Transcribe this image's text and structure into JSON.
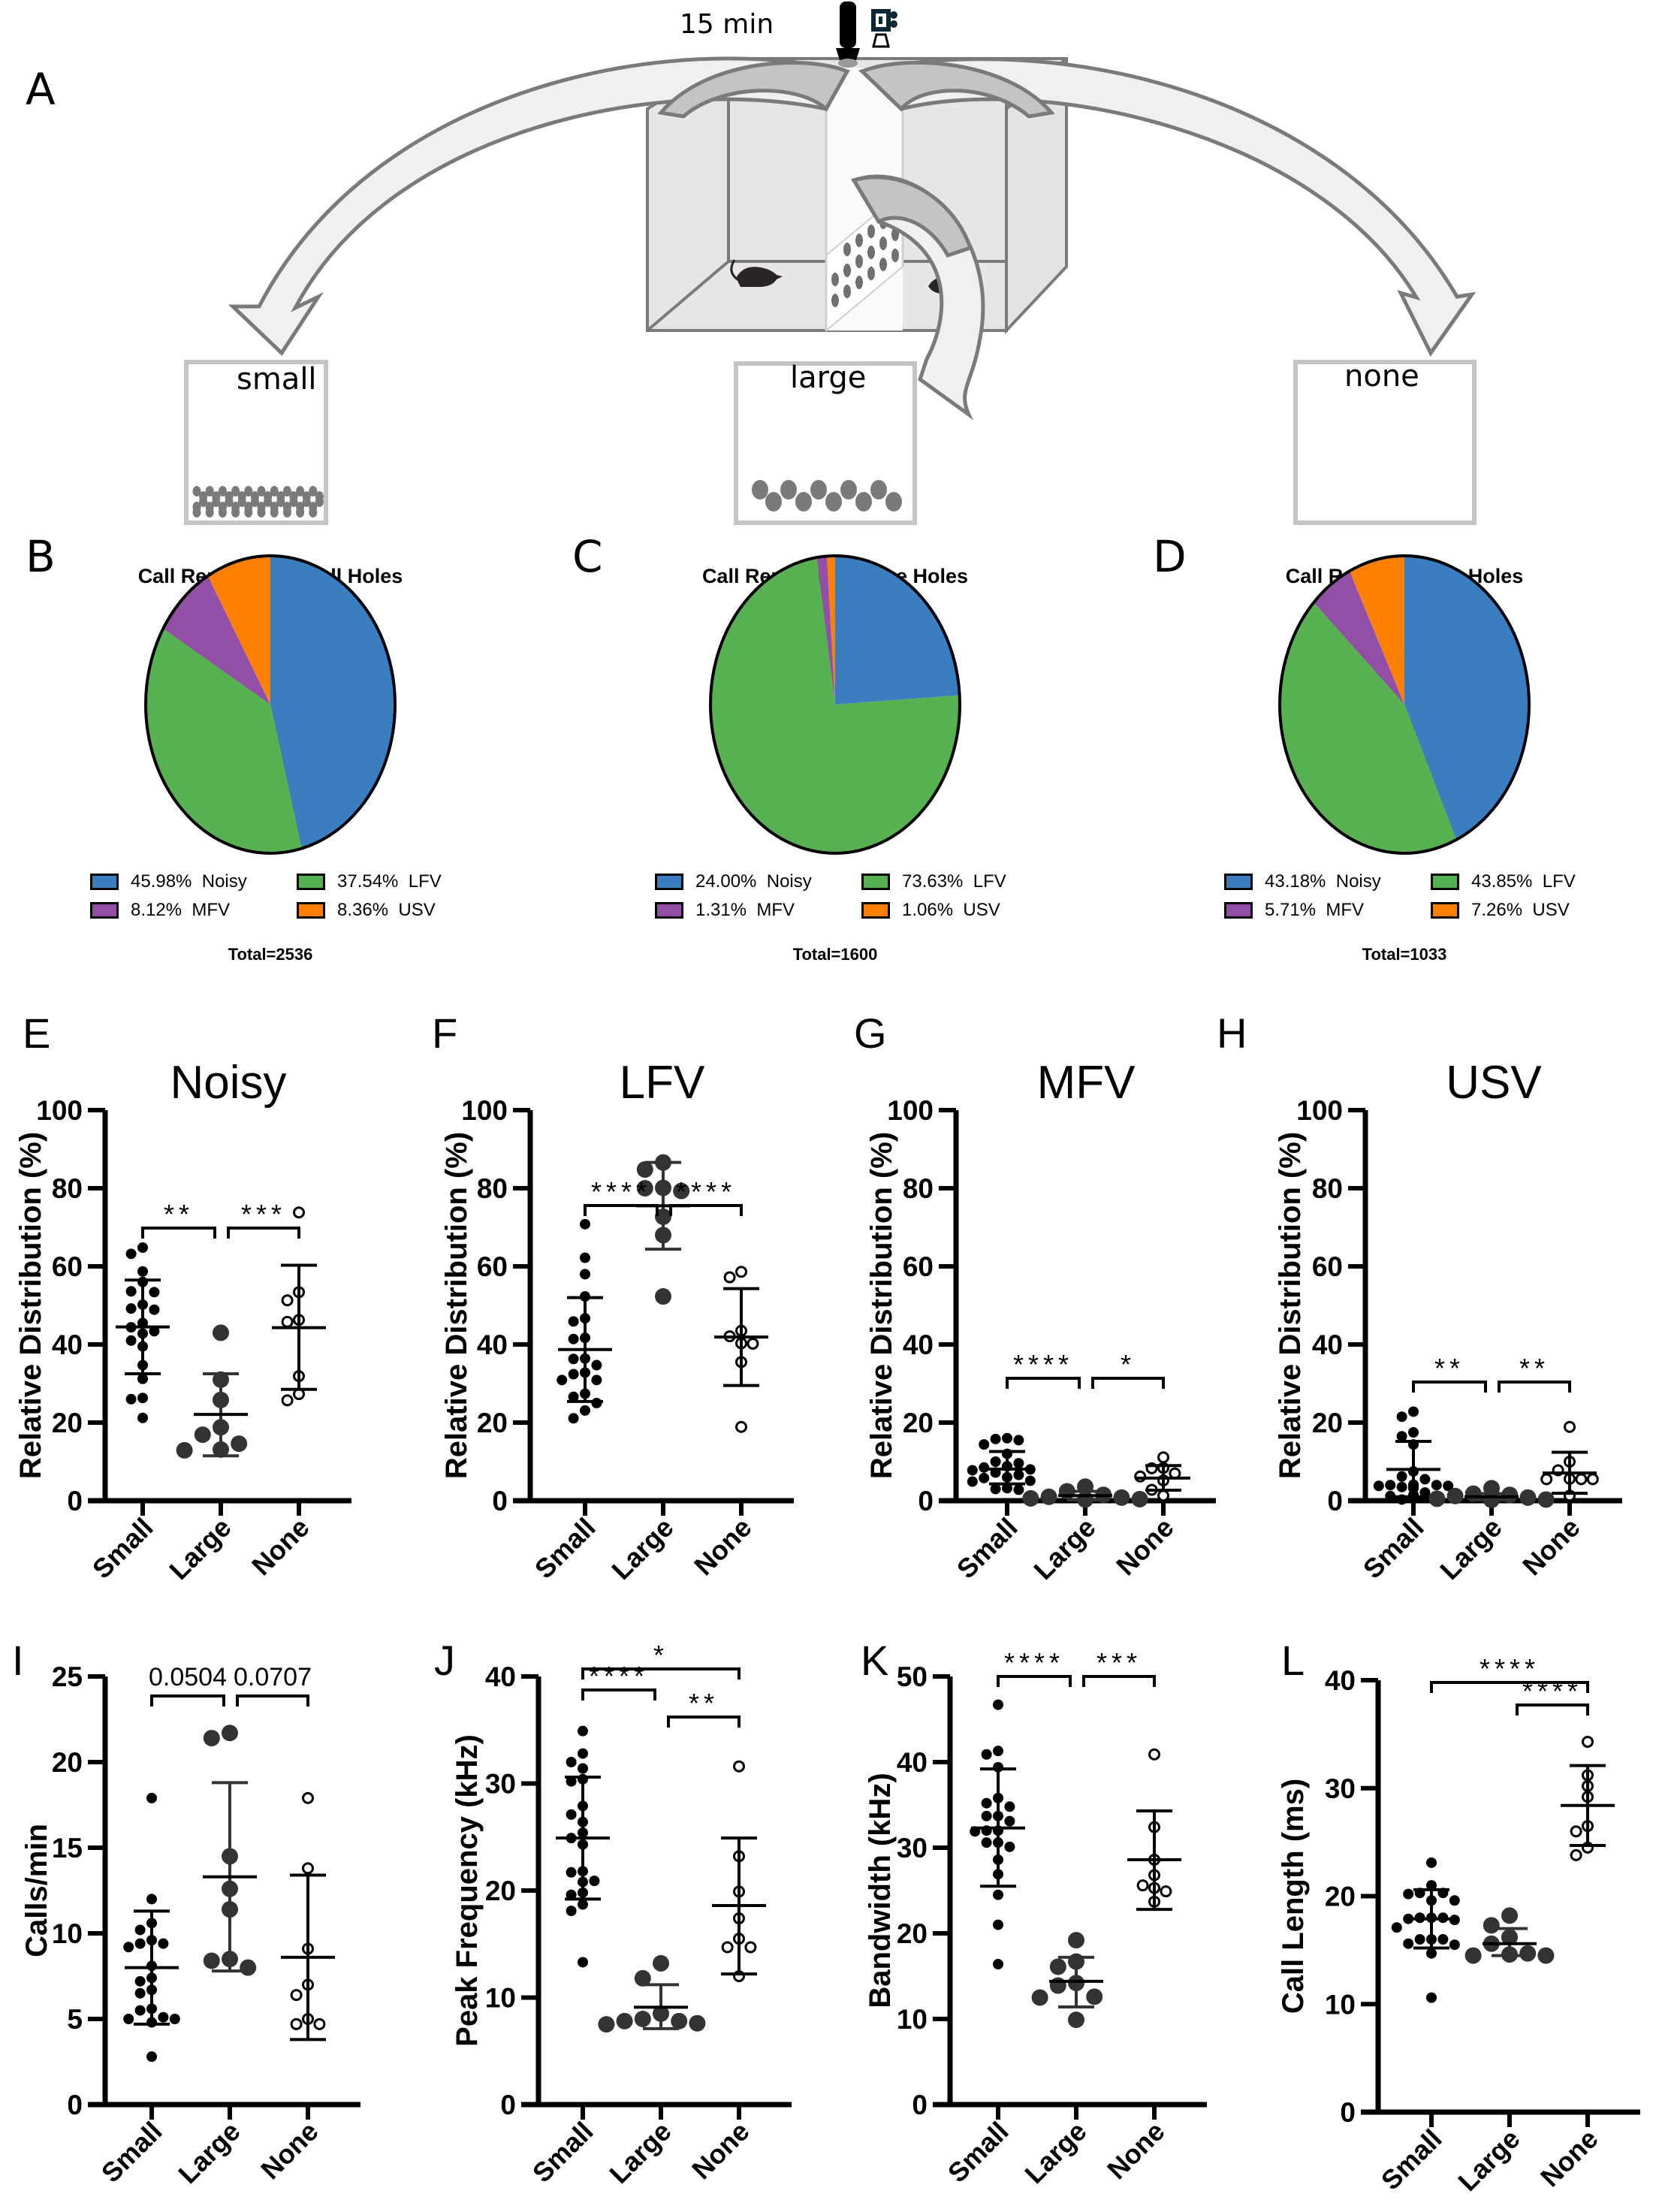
{
  "diagram": {
    "panel_label": "A",
    "duration_label": "15 min",
    "boxes": [
      {
        "id": "small",
        "label": "small"
      },
      {
        "id": "large",
        "label": "large"
      },
      {
        "id": "none",
        "label": "none"
      }
    ],
    "icons": [
      "microphone-icon",
      "camera-icon",
      "mouse-icon",
      "perforated-divider-icon"
    ]
  },
  "colors": {
    "Noisy": "#3a7ebf",
    "LFV": "#57b151",
    "MFV": "#934fa6",
    "USV": "#ff8000",
    "small_dot": "#000000",
    "large_dot": "#333333",
    "none_dot": "#ffffff"
  },
  "chart_data": [
    {
      "panel": "B",
      "type": "pie",
      "title": "Call Repertoire Small Holes",
      "total_label": "Total=2536",
      "slices": [
        {
          "label": "Noisy",
          "value": 45.98,
          "legend": "45.98%  Noisy"
        },
        {
          "label": "LFV",
          "value": 37.54,
          "legend": "37.54%  LFV"
        },
        {
          "label": "MFV",
          "value": 8.12,
          "legend": "8.12%  MFV"
        },
        {
          "label": "USV",
          "value": 8.36,
          "legend": "8.36%  USV"
        }
      ]
    },
    {
      "panel": "C",
      "type": "pie",
      "title": "Call Repertoire Large Holes",
      "total_label": "Total=1600",
      "slices": [
        {
          "label": "Noisy",
          "value": 24.0,
          "legend": "24.00%  Noisy"
        },
        {
          "label": "LFV",
          "value": 73.63,
          "legend": "73.63%  LFV"
        },
        {
          "label": "MFV",
          "value": 1.31,
          "legend": "1.31%  MFV"
        },
        {
          "label": "USV",
          "value": 1.06,
          "legend": "1.06%  USV"
        }
      ]
    },
    {
      "panel": "D",
      "type": "pie",
      "title": "Call Repertoire No Holes",
      "total_label": "Total=1033",
      "slices": [
        {
          "label": "Noisy",
          "value": 43.18,
          "legend": "43.18%  Noisy"
        },
        {
          "label": "LFV",
          "value": 43.85,
          "legend": "43.85%  LFV"
        },
        {
          "label": "MFV",
          "value": 5.71,
          "legend": "5.71%  MFV"
        },
        {
          "label": "USV",
          "value": 7.26,
          "legend": "7.26%  USV"
        }
      ]
    },
    {
      "panel": "E",
      "type": "scatter",
      "title": "Noisy",
      "ylabel": "Relative Distribution (%)",
      "ylim": [
        0,
        100
      ],
      "yticks": [
        0,
        20,
        40,
        60,
        80,
        100
      ],
      "categories": [
        "Small",
        "Large",
        "None"
      ],
      "groups": [
        {
          "name": "Small",
          "mean": 44.5,
          "sd_low": 32.5,
          "sd_high": 56.5,
          "points": [
            64.8,
            63.2,
            58.7,
            56.0,
            53.6,
            53.4,
            50.2,
            49.2,
            48.9,
            45.5,
            44.4,
            43.4,
            42.8,
            41.0,
            39.5,
            34.7,
            31.2,
            26.3,
            26.0,
            21.2
          ]
        },
        {
          "name": "Large",
          "mean": 22.1,
          "sd_low": 11.5,
          "sd_high": 32.5,
          "points": [
            43.0,
            31.0,
            25.8,
            18.8,
            16.9,
            14.6,
            12.9,
            13.1
          ]
        },
        {
          "name": "None",
          "mean": 44.3,
          "sd_low": 28.5,
          "sd_high": 60.3,
          "points": [
            73.8,
            53.4,
            51.3,
            46.3,
            45.8,
            31.9,
            27.3,
            25.7
          ]
        }
      ],
      "comparisons": [
        {
          "from": "Small",
          "to": "Large",
          "label": "**"
        },
        {
          "from": "Large",
          "to": "None",
          "label": "***"
        }
      ]
    },
    {
      "panel": "F",
      "type": "scatter",
      "title": "LFV",
      "ylabel": "Relative Distribution (%)",
      "ylim": [
        0,
        100
      ],
      "yticks": [
        0,
        20,
        40,
        60,
        80,
        100
      ],
      "categories": [
        "Small",
        "Large",
        "None"
      ],
      "groups": [
        {
          "name": "Small",
          "mean": 38.7,
          "sd_low": 25.4,
          "sd_high": 52.0,
          "points": [
            70.8,
            62.2,
            58.0,
            52.3,
            46.7,
            45.9,
            41.4,
            41.7,
            36.3,
            36.4,
            34.7,
            32.8,
            32.4,
            30.9,
            30.9,
            27.4,
            26.6,
            25.0,
            23.1,
            21.1
          ]
        },
        {
          "name": "Large",
          "mean": 75.5,
          "sd_low": 64.4,
          "sd_high": 86.6,
          "points": [
            86.6,
            84.8,
            80.0,
            80.1,
            79.3,
            72.7,
            68.0,
            52.3
          ]
        },
        {
          "name": "None",
          "mean": 41.9,
          "sd_low": 29.5,
          "sd_high": 54.3,
          "points": [
            58.6,
            57.2,
            43.5,
            42.1,
            40.3,
            40.2,
            35.5,
            18.9
          ]
        }
      ],
      "comparisons": [
        {
          "from": "Small",
          "to": "Large",
          "label": "****"
        },
        {
          "from": "Large",
          "to": "None",
          "label": "****"
        }
      ]
    },
    {
      "panel": "G",
      "type": "scatter",
      "title": "MFV",
      "ylabel": "Relative Distribution (%)",
      "ylim": [
        0,
        100
      ],
      "yticks": [
        0,
        20,
        40,
        60,
        80,
        100
      ],
      "categories": [
        "Small",
        "Large",
        "None"
      ],
      "groups": [
        {
          "name": "Small",
          "mean": 8.1,
          "sd_low": 4.3,
          "sd_high": 12.6,
          "points": [
            16.0,
            15.8,
            15.5,
            14.4,
            12.0,
            10.0,
            9.6,
            8.8,
            8.5,
            8.0,
            7.8,
            7.2,
            6.6,
            6.0,
            5.8,
            5.1,
            4.9,
            3.2,
            3.0,
            2.8
          ]
        },
        {
          "name": "Large",
          "mean": 1.3,
          "sd_low": 0.2,
          "sd_high": 2.4,
          "points": [
            3.6,
            2.4,
            1.5,
            1.0,
            0.8,
            0.6,
            0.4,
            0.3
          ]
        },
        {
          "name": "None",
          "mean": 5.8,
          "sd_low": 2.7,
          "sd_high": 9.0,
          "points": [
            11.1,
            8.4,
            8.3,
            7.0,
            6.2,
            5.2,
            2.8,
            1.3
          ]
        }
      ],
      "comparisons": [
        {
          "from": "Small",
          "to": "Large",
          "label": "****"
        },
        {
          "from": "Large",
          "to": "None",
          "label": "*"
        }
      ]
    },
    {
      "panel": "H",
      "type": "scatter",
      "title": "USV",
      "ylabel": "Relative Distribution (%)",
      "ylim": [
        0,
        100
      ],
      "yticks": [
        0,
        20,
        40,
        60,
        80,
        100
      ],
      "categories": [
        "Small",
        "Large",
        "None"
      ],
      "groups": [
        {
          "name": "Small",
          "mean": 8.0,
          "sd_low": 1.0,
          "sd_high": 15.2,
          "points": [
            22.8,
            21.5,
            17.5,
            16.5,
            14.4,
            7.5,
            6.2,
            5.5,
            4.1,
            4.0,
            4.0,
            3.8,
            3.6,
            3.8,
            3.5,
            3.2,
            2.1,
            1.5,
            1.2,
            0.3
          ]
        },
        {
          "name": "Large",
          "mean": 1.0,
          "sd_low": 0.2,
          "sd_high": 1.8,
          "points": [
            3.2,
            1.8,
            1.5,
            1.2,
            0.8,
            0.5,
            0.3,
            0.2
          ]
        },
        {
          "name": "None",
          "mean": 7.1,
          "sd_low": 1.9,
          "sd_high": 12.4,
          "points": [
            18.9,
            10.0,
            7.8,
            5.5,
            5.6,
            5.5,
            5.5,
            1.3
          ]
        }
      ],
      "comparisons": [
        {
          "from": "Small",
          "to": "Large",
          "label": "**"
        },
        {
          "from": "Large",
          "to": "None",
          "label": "**"
        }
      ]
    },
    {
      "panel": "I",
      "type": "scatter",
      "title": "",
      "ylabel": "Calls/min",
      "ylim": [
        0,
        25
      ],
      "yticks": [
        0,
        5,
        10,
        15,
        20,
        25
      ],
      "categories": [
        "Small",
        "Large",
        "None"
      ],
      "groups": [
        {
          "name": "Small",
          "mean": 8.0,
          "sd_low": 4.7,
          "sd_high": 11.3,
          "points": [
            17.9,
            12.0,
            10.6,
            10.2,
            9.6,
            9.4,
            9.4,
            9.2,
            8.1,
            7.4,
            7.2,
            6.7,
            6.5,
            5.6,
            5.5,
            5.1,
            5.0,
            5.0,
            4.8,
            2.8
          ]
        },
        {
          "name": "Large",
          "mean": 13.3,
          "sd_low": 7.8,
          "sd_high": 18.8,
          "points": [
            21.7,
            21.4,
            14.5,
            12.6,
            11.4,
            8.5,
            8.4,
            8.0
          ]
        },
        {
          "name": "None",
          "mean": 8.6,
          "sd_low": 3.8,
          "sd_high": 13.4,
          "points": [
            17.9,
            13.8,
            9.1,
            7.0,
            6.4,
            5.0,
            4.7,
            4.7
          ]
        }
      ],
      "comparisons": [
        {
          "from": "Small",
          "to": "Large",
          "label": "0.0504"
        },
        {
          "from": "Large",
          "to": "None",
          "label": "0.0707"
        }
      ]
    },
    {
      "panel": "J",
      "type": "scatter",
      "title": "",
      "ylabel": "Peak Frequency (kHz)",
      "ylim": [
        0,
        40
      ],
      "yticks": [
        0,
        10,
        20,
        30,
        40
      ],
      "categories": [
        "Small",
        "Large",
        "None"
      ],
      "groups": [
        {
          "name": "Small",
          "mean": 24.9,
          "sd_low": 19.2,
          "sd_high": 30.6,
          "points": [
            34.9,
            32.8,
            32.0,
            31.4,
            30.4,
            30.2,
            27.9,
            27.1,
            26.4,
            25.4,
            24.9,
            24.3,
            21.8,
            21.7,
            20.8,
            20.9,
            19.8,
            19.6,
            18.7,
            18.1,
            13.3
          ]
        },
        {
          "name": "Large",
          "mean": 9.1,
          "sd_low": 7.1,
          "sd_high": 11.2,
          "points": [
            13.2,
            11.8,
            8.5,
            8.0,
            7.8,
            7.6,
            7.5,
            7.8
          ]
        },
        {
          "name": "None",
          "mean": 18.6,
          "sd_low": 12.2,
          "sd_high": 24.9,
          "points": [
            31.6,
            23.2,
            19.9,
            17.4,
            15.5,
            14.7,
            14.7,
            12.0
          ]
        }
      ],
      "comparisons": [
        {
          "from": "Small",
          "to": "Large",
          "label": "****"
        },
        {
          "from": "Large",
          "to": "None",
          "label": "**"
        },
        {
          "from": "Small",
          "to": "None",
          "label": "*"
        }
      ]
    },
    {
      "panel": "K",
      "type": "scatter",
      "title": "",
      "ylabel": "Bandwidth (kHz)",
      "ylim": [
        0,
        50
      ],
      "yticks": [
        0,
        10,
        20,
        30,
        40,
        50
      ],
      "categories": [
        "Small",
        "Large",
        "None"
      ],
      "groups": [
        {
          "name": "Small",
          "mean": 32.3,
          "sd_low": 25.5,
          "sd_high": 39.2,
          "points": [
            46.7,
            41.3,
            40.9,
            39.4,
            35.8,
            35.2,
            34.8,
            33.7,
            33.7,
            33.1,
            32.0,
            32.0,
            31.9,
            30.6,
            30.6,
            30.1,
            28.6,
            26.9,
            24.5,
            21.0,
            16.4
          ]
        },
        {
          "name": "Large",
          "mean": 14.4,
          "sd_low": 11.4,
          "sd_high": 17.2,
          "points": [
            19.2,
            16.7,
            16.1,
            14.2,
            13.9,
            12.5,
            12.6,
            9.9
          ]
        },
        {
          "name": "None",
          "mean": 28.6,
          "sd_low": 22.8,
          "sd_high": 34.3,
          "points": [
            40.9,
            32.4,
            28.6,
            26.8,
            25.6,
            25.3,
            24.9,
            23.7
          ]
        }
      ],
      "comparisons": [
        {
          "from": "Small",
          "to": "Large",
          "label": "****"
        },
        {
          "from": "Large",
          "to": "None",
          "label": "***"
        }
      ]
    },
    {
      "panel": "L",
      "type": "scatter",
      "title": "",
      "ylabel": "Call Length (ms)",
      "ylim": [
        0,
        40
      ],
      "yticks": [
        0,
        10,
        20,
        30,
        40
      ],
      "categories": [
        "Small",
        "Large",
        "None"
      ],
      "groups": [
        {
          "name": "Small",
          "mean": 17.9,
          "sd_low": 15.2,
          "sd_high": 20.6,
          "points": [
            23.1,
            21.0,
            20.3,
            20.3,
            20.2,
            19.6,
            19.6,
            18.0,
            18.0,
            17.8,
            17.9,
            18.0,
            17.1,
            16.0,
            15.6,
            16.0,
            16.0,
            15.5,
            14.7,
            10.6
          ]
        },
        {
          "name": "Large",
          "mean": 15.6,
          "sd_low": 14.5,
          "sd_high": 17.0,
          "points": [
            18.2,
            17.3,
            16.2,
            15.6,
            14.7,
            14.5,
            14.6,
            14.5
          ]
        },
        {
          "name": "None",
          "mean": 28.4,
          "sd_low": 24.7,
          "sd_high": 32.1,
          "points": [
            34.3,
            31.2,
            30.2,
            29.2,
            26.5,
            26.0,
            24.5,
            23.8
          ]
        }
      ],
      "comparisons": [
        {
          "from": "Large",
          "to": "None",
          "label": "****"
        },
        {
          "from": "Small",
          "to": "None",
          "label": "****"
        }
      ]
    }
  ]
}
